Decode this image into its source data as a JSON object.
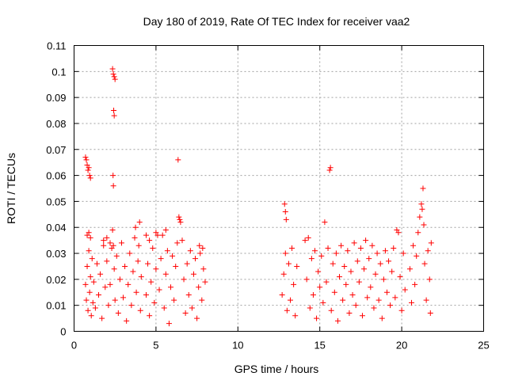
{
  "chart_data": {
    "type": "scatter",
    "title": "Day 180 of 2019, Rate Of TEC Index for receiver vaa2",
    "xlabel": "GPS time / hours",
    "ylabel": "ROTI / TECUs",
    "xlim": [
      0,
      25
    ],
    "ylim": [
      0,
      0.11
    ],
    "x_ticks": [
      0,
      5,
      10,
      15,
      20,
      25
    ],
    "x_tick_labels": [
      "0",
      "5",
      "10",
      "15",
      "20",
      "25"
    ],
    "y_ticks": [
      0,
      0.01,
      0.02,
      0.03,
      0.04,
      0.05,
      0.06,
      0.07,
      0.08,
      0.09,
      0.1,
      0.11
    ],
    "y_tick_labels": [
      "0",
      "0.01",
      "0.02",
      "0.03",
      "0.04",
      "0.05",
      "0.06",
      "0.07",
      "0.08",
      "0.09",
      "0.1",
      "0.11"
    ],
    "grid": true,
    "marker": "+",
    "color": "#ff0000",
    "series": [
      {
        "name": "ROTI",
        "points": [
          [
            0.7,
            0.018
          ],
          [
            0.75,
            0.012
          ],
          [
            0.8,
            0.025
          ],
          [
            0.85,
            0.008
          ],
          [
            0.9,
            0.031
          ],
          [
            0.95,
            0.015
          ],
          [
            1.0,
            0.021
          ],
          [
            1.05,
            0.006
          ],
          [
            1.1,
            0.028
          ],
          [
            1.15,
            0.011
          ],
          [
            0.7,
            0.067
          ],
          [
            0.75,
            0.066
          ],
          [
            0.8,
            0.064
          ],
          [
            0.85,
            0.062
          ],
          [
            0.9,
            0.063
          ],
          [
            0.95,
            0.06
          ],
          [
            1.0,
            0.059
          ],
          [
            0.8,
            0.037
          ],
          [
            0.9,
            0.038
          ],
          [
            1.0,
            0.036
          ],
          [
            1.2,
            0.019
          ],
          [
            1.3,
            0.009
          ],
          [
            1.4,
            0.026
          ],
          [
            1.5,
            0.014
          ],
          [
            1.6,
            0.022
          ],
          [
            1.7,
            0.005
          ],
          [
            1.8,
            0.033
          ],
          [
            1.9,
            0.017
          ],
          [
            2.0,
            0.027
          ],
          [
            2.1,
            0.01
          ],
          [
            1.8,
            0.035
          ],
          [
            2.0,
            0.036
          ],
          [
            2.2,
            0.034
          ],
          [
            2.2,
            0.018
          ],
          [
            2.3,
            0.032
          ],
          [
            2.35,
            0.039
          ],
          [
            2.4,
            0.033
          ],
          [
            2.45,
            0.024
          ],
          [
            2.35,
            0.101
          ],
          [
            2.4,
            0.099
          ],
          [
            2.45,
            0.098
          ],
          [
            2.5,
            0.097
          ],
          [
            2.42,
            0.085
          ],
          [
            2.45,
            0.083
          ],
          [
            2.38,
            0.06
          ],
          [
            2.4,
            0.056
          ],
          [
            2.5,
            0.012
          ],
          [
            2.6,
            0.029
          ],
          [
            2.7,
            0.007
          ],
          [
            2.8,
            0.02
          ],
          [
            2.9,
            0.034
          ],
          [
            3.0,
            0.013
          ],
          [
            3.1,
            0.025
          ],
          [
            3.2,
            0.004
          ],
          [
            3.3,
            0.018
          ],
          [
            3.4,
            0.03
          ],
          [
            3.5,
            0.01
          ],
          [
            3.6,
            0.023
          ],
          [
            3.7,
            0.036
          ],
          [
            3.8,
            0.015
          ],
          [
            3.9,
            0.027
          ],
          [
            4.0,
            0.042
          ],
          [
            4.05,
            0.008
          ],
          [
            4.1,
            0.021
          ],
          [
            3.95,
            0.033
          ],
          [
            3.75,
            0.04
          ],
          [
            4.4,
            0.014
          ],
          [
            4.5,
            0.026
          ],
          [
            4.6,
            0.006
          ],
          [
            4.7,
            0.019
          ],
          [
            4.8,
            0.032
          ],
          [
            4.9,
            0.011
          ],
          [
            5.0,
            0.024
          ],
          [
            5.1,
            0.037
          ],
          [
            5.2,
            0.016
          ],
          [
            5.3,
            0.028
          ],
          [
            4.4,
            0.037
          ],
          [
            4.6,
            0.035
          ],
          [
            5.0,
            0.038
          ],
          [
            5.5,
            0.009
          ],
          [
            5.6,
            0.022
          ],
          [
            5.7,
            0.031
          ],
          [
            5.8,
            0.003
          ],
          [
            5.9,
            0.017
          ],
          [
            6.0,
            0.029
          ],
          [
            6.1,
            0.012
          ],
          [
            5.4,
            0.037
          ],
          [
            5.6,
            0.039
          ],
          [
            6.2,
            0.025
          ],
          [
            6.3,
            0.034
          ],
          [
            6.4,
            0.044
          ],
          [
            6.45,
            0.043
          ],
          [
            6.5,
            0.042
          ],
          [
            6.6,
            0.035
          ],
          [
            6.7,
            0.02
          ],
          [
            6.8,
            0.007
          ],
          [
            6.35,
            0.066
          ],
          [
            6.9,
            0.026
          ],
          [
            7.0,
            0.014
          ],
          [
            7.1,
            0.031
          ],
          [
            7.2,
            0.009
          ],
          [
            7.3,
            0.022
          ],
          [
            7.4,
            0.028
          ],
          [
            7.5,
            0.005
          ],
          [
            7.6,
            0.017
          ],
          [
            7.7,
            0.03
          ],
          [
            7.8,
            0.012
          ],
          [
            7.9,
            0.024
          ],
          [
            8.0,
            0.019
          ],
          [
            7.85,
            0.032
          ],
          [
            7.65,
            0.033
          ],
          [
            12.7,
            0.014
          ],
          [
            12.8,
            0.022
          ],
          [
            12.9,
            0.03
          ],
          [
            13.0,
            0.008
          ],
          [
            12.85,
            0.049
          ],
          [
            12.9,
            0.046
          ],
          [
            12.95,
            0.043
          ],
          [
            13.1,
            0.026
          ],
          [
            13.2,
            0.012
          ],
          [
            13.3,
            0.032
          ],
          [
            13.4,
            0.018
          ],
          [
            13.5,
            0.006
          ],
          [
            13.6,
            0.025
          ],
          [
            14.1,
            0.035
          ],
          [
            14.2,
            0.02
          ],
          [
            14.3,
            0.036
          ],
          [
            14.4,
            0.009
          ],
          [
            14.5,
            0.028
          ],
          [
            14.6,
            0.014
          ],
          [
            14.7,
            0.031
          ],
          [
            14.8,
            0.005
          ],
          [
            14.9,
            0.023
          ],
          [
            15.0,
            0.017
          ],
          [
            15.1,
            0.029
          ],
          [
            15.2,
            0.011
          ],
          [
            15.3,
            0.042
          ],
          [
            15.4,
            0.019
          ],
          [
            15.5,
            0.032
          ],
          [
            15.6,
            0.062
          ],
          [
            15.65,
            0.063
          ],
          [
            15.7,
            0.008
          ],
          [
            15.8,
            0.026
          ],
          [
            15.9,
            0.015
          ],
          [
            16.0,
            0.03
          ],
          [
            16.1,
            0.004
          ],
          [
            16.2,
            0.021
          ],
          [
            16.3,
            0.033
          ],
          [
            16.4,
            0.012
          ],
          [
            16.5,
            0.025
          ],
          [
            16.6,
            0.018
          ],
          [
            16.7,
            0.031
          ],
          [
            16.8,
            0.007
          ],
          [
            16.9,
            0.023
          ],
          [
            17.0,
            0.014
          ],
          [
            17.1,
            0.034
          ],
          [
            17.2,
            0.01
          ],
          [
            17.3,
            0.027
          ],
          [
            17.4,
            0.019
          ],
          [
            17.5,
            0.032
          ],
          [
            17.6,
            0.006
          ],
          [
            17.7,
            0.024
          ],
          [
            17.8,
            0.035
          ],
          [
            17.9,
            0.013
          ],
          [
            18.0,
            0.028
          ],
          [
            18.1,
            0.017
          ],
          [
            18.2,
            0.033
          ],
          [
            18.3,
            0.009
          ],
          [
            18.4,
            0.022
          ],
          [
            18.5,
            0.03
          ],
          [
            18.6,
            0.012
          ],
          [
            18.7,
            0.026
          ],
          [
            18.8,
            0.005
          ],
          [
            18.9,
            0.02
          ],
          [
            19.0,
            0.031
          ],
          [
            19.1,
            0.015
          ],
          [
            19.2,
            0.027
          ],
          [
            19.3,
            0.01
          ],
          [
            19.4,
            0.023
          ],
          [
            19.5,
            0.032
          ],
          [
            19.6,
            0.013
          ],
          [
            19.7,
            0.039
          ],
          [
            19.8,
            0.038
          ],
          [
            19.9,
            0.021
          ],
          [
            20.0,
            0.008
          ],
          [
            20.1,
            0.03
          ],
          [
            20.2,
            0.016
          ],
          [
            20.5,
            0.024
          ],
          [
            20.6,
            0.011
          ],
          [
            20.7,
            0.033
          ],
          [
            20.8,
            0.018
          ],
          [
            20.9,
            0.029
          ],
          [
            21.0,
            0.038
          ],
          [
            21.1,
            0.044
          ],
          [
            21.2,
            0.049
          ],
          [
            21.25,
            0.047
          ],
          [
            21.3,
            0.055
          ],
          [
            21.35,
            0.041
          ],
          [
            21.4,
            0.026
          ],
          [
            21.5,
            0.012
          ],
          [
            21.6,
            0.031
          ],
          [
            21.7,
            0.02
          ],
          [
            21.75,
            0.007
          ],
          [
            21.8,
            0.034
          ]
        ]
      }
    ]
  }
}
